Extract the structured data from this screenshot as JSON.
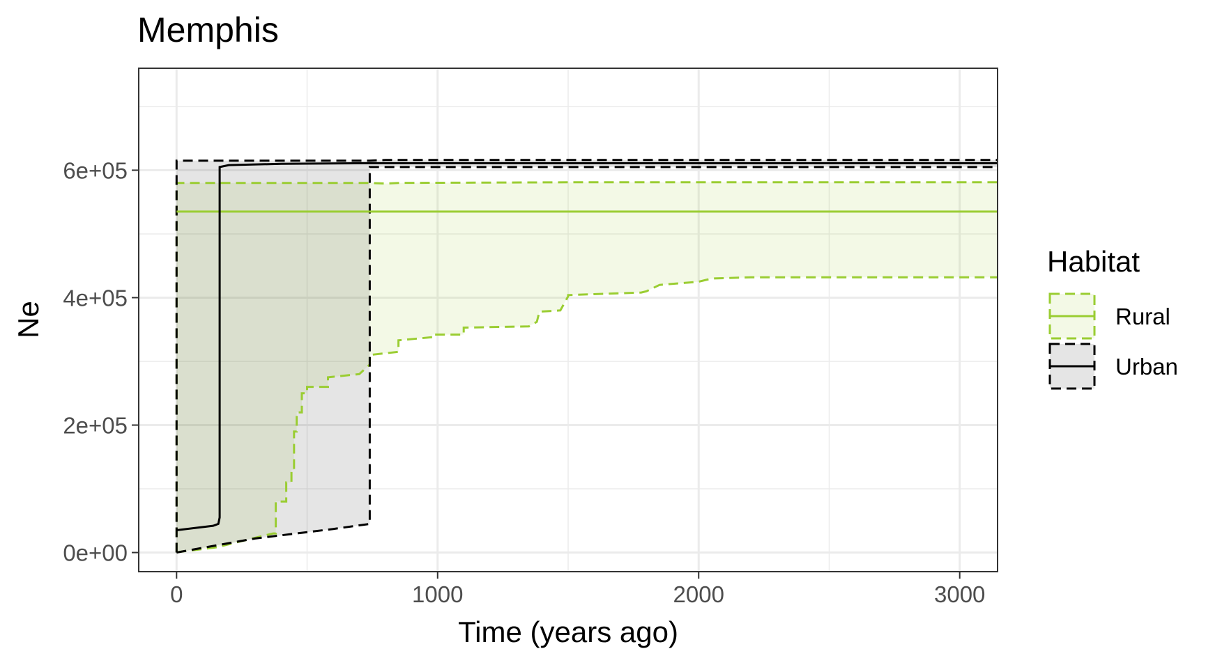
{
  "chart_data": {
    "type": "line",
    "title": "Memphis",
    "xlabel": "Time (years ago)",
    "ylabel": "Ne",
    "xlim": [
      -145,
      3145
    ],
    "ylim": [
      -30000,
      760000
    ],
    "x_ticks": [
      0,
      1000,
      2000,
      3000
    ],
    "x_tick_labels": [
      "0",
      "1000",
      "2000",
      "3000"
    ],
    "y_ticks": [
      0,
      200000,
      400000,
      600000
    ],
    "y_tick_labels": [
      "0e+00",
      "2e+05",
      "4e+05",
      "6e+05"
    ],
    "grid": true,
    "legend": {
      "title": "Habitat",
      "position": "right",
      "entries": [
        "Rural",
        "Urban"
      ]
    },
    "series": [
      {
        "name": "Rural",
        "color": "#9acd32",
        "fill_opacity": 0.12,
        "x": [
          0,
          3145
        ],
        "median": [
          535000,
          535000
        ],
        "upper": [
          [
            0,
            0
          ],
          [
            0,
            580000
          ],
          [
            740,
            580000
          ],
          [
            800,
            579000
          ],
          [
            850,
            580000
          ],
          [
            1500,
            581000
          ],
          [
            3145,
            581000
          ]
        ],
        "lower": [
          [
            0,
            0
          ],
          [
            10,
            1000
          ],
          [
            150,
            8000
          ],
          [
            250,
            18000
          ],
          [
            370,
            30000
          ],
          [
            380,
            30000
          ],
          [
            380,
            80000
          ],
          [
            420,
            80000
          ],
          [
            420,
            110000
          ],
          [
            440,
            110000
          ],
          [
            440,
            130000
          ],
          [
            450,
            130000
          ],
          [
            450,
            190000
          ],
          [
            460,
            190000
          ],
          [
            460,
            220000
          ],
          [
            480,
            220000
          ],
          [
            480,
            250000
          ],
          [
            500,
            250000
          ],
          [
            500,
            260000
          ],
          [
            580,
            260000
          ],
          [
            580,
            275000
          ],
          [
            700,
            280000
          ],
          [
            740,
            295000
          ],
          [
            740,
            310000
          ],
          [
            850,
            315000
          ],
          [
            850,
            333000
          ],
          [
            980,
            338000
          ],
          [
            980,
            342000
          ],
          [
            1100,
            342000
          ],
          [
            1100,
            353000
          ],
          [
            1350,
            355000
          ],
          [
            1380,
            362000
          ],
          [
            1390,
            378000
          ],
          [
            1470,
            380000
          ],
          [
            1500,
            402000
          ],
          [
            1500,
            404000
          ],
          [
            1780,
            408000
          ],
          [
            1800,
            410000
          ],
          [
            1850,
            420000
          ],
          [
            2000,
            425000
          ],
          [
            2050,
            430000
          ],
          [
            2200,
            432000
          ],
          [
            3145,
            432000
          ]
        ]
      },
      {
        "name": "Urban",
        "color": "#000000",
        "fill_opacity": 0.1,
        "x": [
          0,
          3145
        ],
        "median": [
          [
            0,
            35000
          ],
          [
            140,
            42000
          ],
          [
            160,
            45000
          ],
          [
            165,
            55000
          ],
          [
            165,
            605000
          ],
          [
            200,
            608000
          ],
          [
            400,
            610000
          ],
          [
            740,
            611000
          ],
          [
            3145,
            611000
          ]
        ],
        "upper": [
          [
            0,
            0
          ],
          [
            0,
            615000
          ],
          [
            740,
            615000
          ],
          [
            800,
            616000
          ],
          [
            3145,
            616000
          ]
        ],
        "lower": [
          [
            0,
            0
          ],
          [
            300,
            22000
          ],
          [
            600,
            37000
          ],
          [
            740,
            45000
          ],
          [
            740,
            605000
          ],
          [
            3145,
            605000
          ]
        ]
      }
    ]
  }
}
